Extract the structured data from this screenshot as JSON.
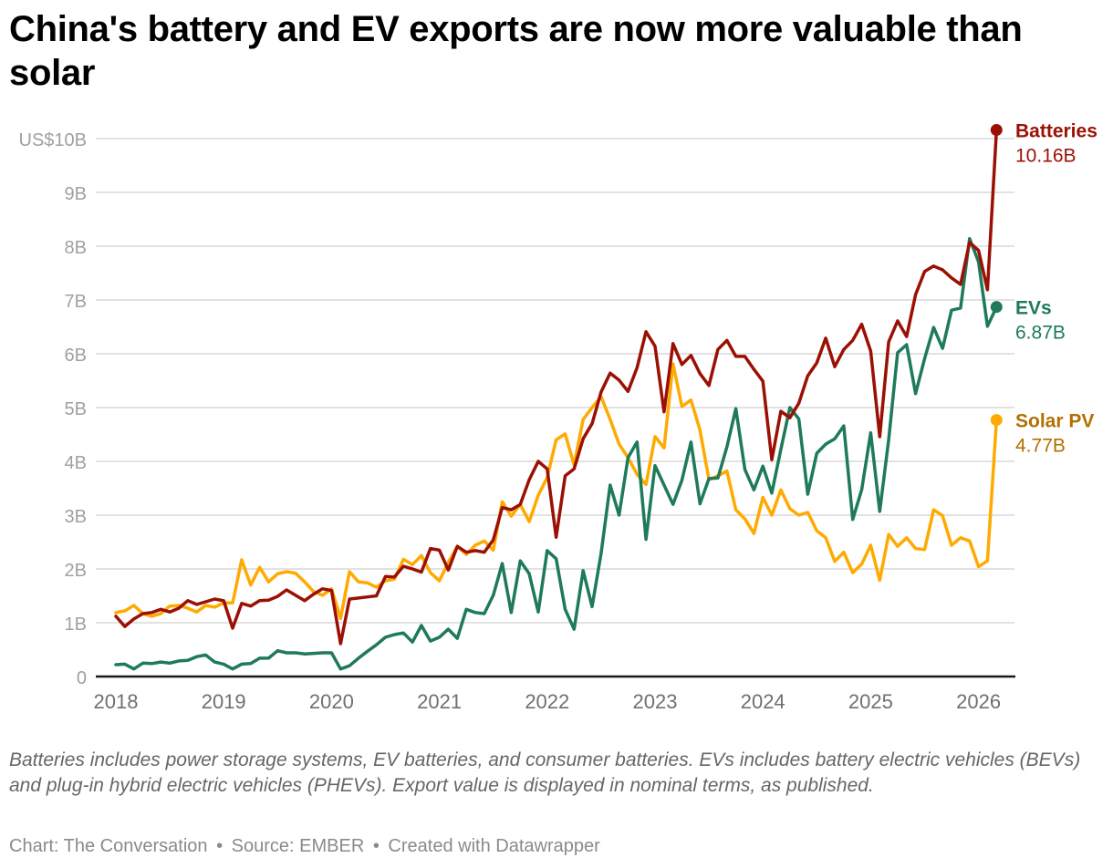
{
  "title": "China's battery and EV exports are now more valuable than solar",
  "notes": "Batteries includes power storage systems, EV batteries, and consumer batteries. EVs includes battery electric vehicles (BEVs) and plug-in hybrid electric vehicles (PHEVs). Export value is displayed in nominal terms, as published.",
  "footer": {
    "chart_credit": "Chart: The Conversation",
    "source": "Source: EMBER",
    "created_with": "Created with Datawrapper",
    "separator": "•"
  },
  "chart_data": {
    "type": "line",
    "title": "China's battery and EV exports are now more valuable than solar",
    "xlabel": "",
    "ylabel": "",
    "x_start": "2018-01",
    "x_end": "2026-03",
    "x_frequency": "monthly",
    "x_ticks": [
      "2018",
      "2019",
      "2020",
      "2021",
      "2022",
      "2023",
      "2024",
      "2025",
      "2026"
    ],
    "y_ticks": [
      {
        "value": 0,
        "label": "0"
      },
      {
        "value": 1,
        "label": "1B"
      },
      {
        "value": 2,
        "label": "2B"
      },
      {
        "value": 3,
        "label": "3B"
      },
      {
        "value": 4,
        "label": "4B"
      },
      {
        "value": 5,
        "label": "5B"
      },
      {
        "value": 6,
        "label": "6B"
      },
      {
        "value": 7,
        "label": "7B"
      },
      {
        "value": 8,
        "label": "8B"
      },
      {
        "value": 9,
        "label": "9B"
      },
      {
        "value": 10,
        "label": "US$10B"
      }
    ],
    "ylim": [
      0,
      10
    ],
    "units": "US$ billions",
    "grid": true,
    "legend": "direct labels at line ends (right)",
    "series": [
      {
        "name": "Batteries",
        "end_label": "10.16B",
        "color": "#9b1004",
        "label_color": "#9b1004",
        "values": [
          1.12,
          0.93,
          1.07,
          1.17,
          1.19,
          1.25,
          1.2,
          1.27,
          1.41,
          1.34,
          1.39,
          1.44,
          1.41,
          0.9,
          1.36,
          1.31,
          1.41,
          1.42,
          1.49,
          1.61,
          1.51,
          1.41,
          1.53,
          1.63,
          1.6,
          0.61,
          1.44,
          1.46,
          1.48,
          1.5,
          1.86,
          1.85,
          2.05,
          2.0,
          1.94,
          2.38,
          2.35,
          1.98,
          2.42,
          2.31,
          2.34,
          2.31,
          2.54,
          3.14,
          3.1,
          3.2,
          3.66,
          4.0,
          3.86,
          2.59,
          3.73,
          3.86,
          4.42,
          4.7,
          5.29,
          5.64,
          5.51,
          5.3,
          5.74,
          6.41,
          6.14,
          4.92,
          6.19,
          5.8,
          5.97,
          5.63,
          5.41,
          6.08,
          6.25,
          5.95,
          5.95,
          5.71,
          5.49,
          4.03,
          4.93,
          4.81,
          5.08,
          5.59,
          5.83,
          6.29,
          5.76,
          6.08,
          6.25,
          6.55,
          6.05,
          4.46,
          6.22,
          6.61,
          6.32,
          7.1,
          7.53,
          7.63,
          7.56,
          7.41,
          7.29,
          8.07,
          7.92,
          7.19,
          10.16
        ]
      },
      {
        "name": "EVs",
        "end_label": "6.87B",
        "color": "#1e7a5a",
        "label_color": "#1e7a5a",
        "values": [
          0.22,
          0.23,
          0.14,
          0.25,
          0.24,
          0.27,
          0.25,
          0.29,
          0.3,
          0.37,
          0.4,
          0.27,
          0.23,
          0.14,
          0.23,
          0.24,
          0.34,
          0.34,
          0.48,
          0.44,
          0.44,
          0.42,
          0.43,
          0.44,
          0.44,
          0.14,
          0.2,
          0.34,
          0.47,
          0.59,
          0.73,
          0.78,
          0.81,
          0.64,
          0.95,
          0.66,
          0.73,
          0.88,
          0.71,
          1.25,
          1.19,
          1.17,
          1.51,
          2.1,
          1.19,
          2.15,
          1.91,
          1.2,
          2.34,
          2.19,
          1.25,
          0.88,
          1.97,
          1.3,
          2.29,
          3.56,
          3.0,
          4.07,
          4.36,
          2.55,
          3.92,
          3.56,
          3.2,
          3.65,
          4.36,
          3.21,
          3.68,
          3.69,
          4.27,
          4.98,
          3.85,
          3.47,
          3.91,
          3.41,
          4.22,
          5.0,
          4.79,
          3.39,
          4.15,
          4.32,
          4.42,
          4.66,
          2.92,
          3.47,
          4.53,
          3.07,
          4.4,
          6.02,
          6.17,
          5.26,
          5.91,
          6.49,
          6.1,
          6.81,
          6.85,
          8.14,
          7.71,
          6.51,
          6.87
        ]
      },
      {
        "name": "Solar PV",
        "end_label": "4.77B",
        "color": "#ffaa00",
        "label_color": "#b36f00",
        "values": [
          1.19,
          1.22,
          1.32,
          1.17,
          1.12,
          1.17,
          1.31,
          1.32,
          1.27,
          1.2,
          1.32,
          1.29,
          1.37,
          1.37,
          2.17,
          1.7,
          2.03,
          1.76,
          1.91,
          1.95,
          1.92,
          1.76,
          1.58,
          1.51,
          1.63,
          1.08,
          1.95,
          1.76,
          1.74,
          1.66,
          1.78,
          1.81,
          2.18,
          2.08,
          2.25,
          1.93,
          1.78,
          2.12,
          2.42,
          2.27,
          2.44,
          2.52,
          2.35,
          3.25,
          2.98,
          3.2,
          2.88,
          3.37,
          3.7,
          4.4,
          4.51,
          3.93,
          4.78,
          5.0,
          5.2,
          4.78,
          4.32,
          4.07,
          3.76,
          3.57,
          4.46,
          4.25,
          5.81,
          5.02,
          5.14,
          4.58,
          3.66,
          3.73,
          3.82,
          3.1,
          2.93,
          2.66,
          3.33,
          3.0,
          3.47,
          3.12,
          3.0,
          3.05,
          2.71,
          2.58,
          2.14,
          2.31,
          1.93,
          2.09,
          2.44,
          1.79,
          2.64,
          2.42,
          2.58,
          2.38,
          2.36,
          3.1,
          2.99,
          2.44,
          2.58,
          2.52,
          2.04,
          2.15,
          4.77
        ]
      }
    ]
  }
}
